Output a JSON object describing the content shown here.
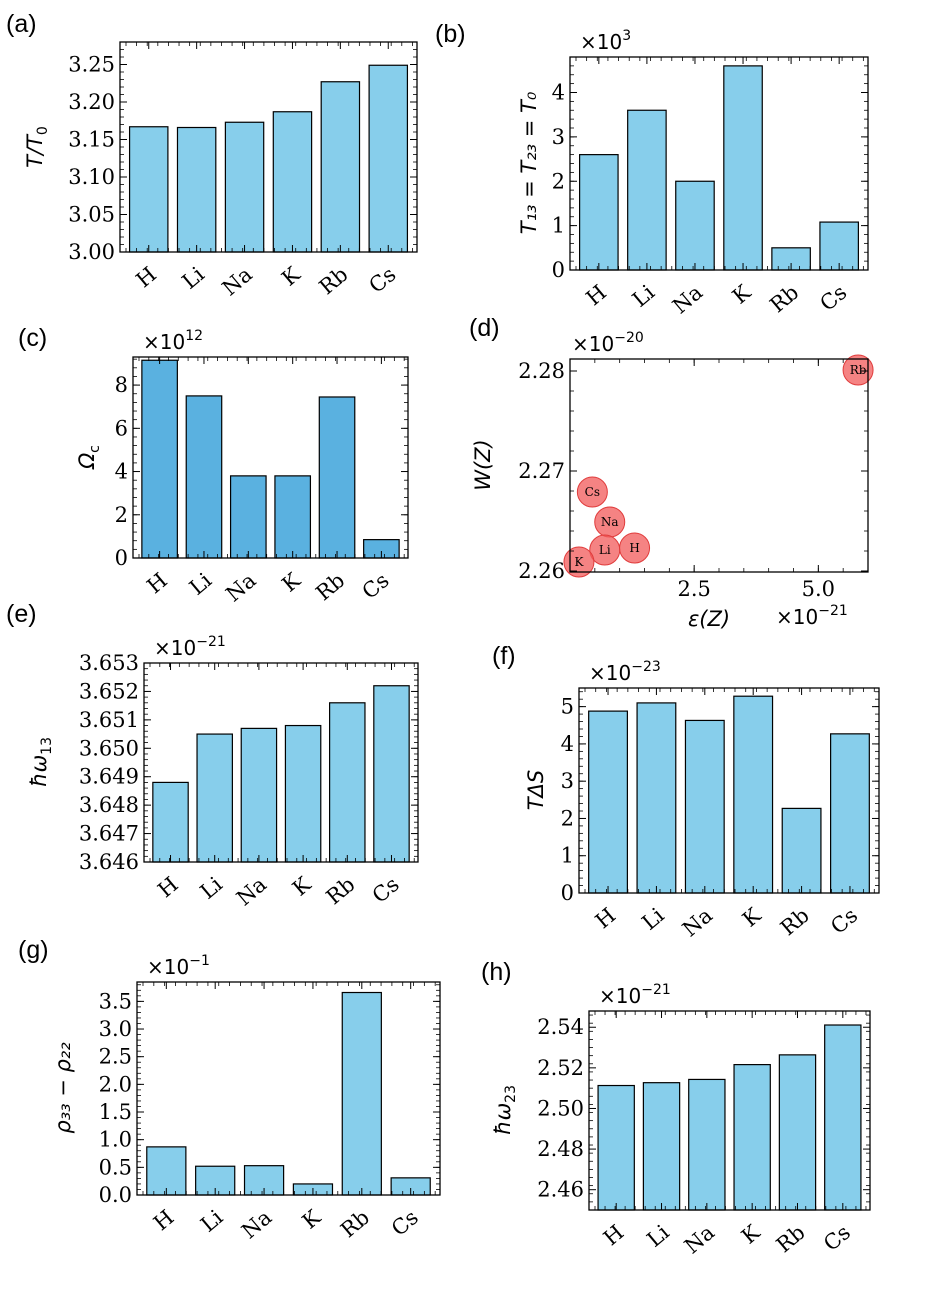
{
  "colors": {
    "bar_light": "#87ceeb",
    "bar_dark": "#5ab1e0",
    "point": "#f25a5a"
  },
  "chart_data": [
    {
      "id": "a",
      "panel_label": "(a)",
      "type": "bar",
      "categories": [
        "H",
        "Li",
        "Na",
        "K",
        "Rb",
        "Cs"
      ],
      "values": [
        3.167,
        3.166,
        3.173,
        3.187,
        3.227,
        3.249
      ],
      "ylim": [
        3.0,
        3.28
      ],
      "yticks": [
        "3.00",
        "3.05",
        "3.10",
        "3.15",
        "3.20",
        "3.25"
      ],
      "ylabel": "T/T",
      "ylabel_sub": "0",
      "multiplier_base": "",
      "multiplier_exp": "",
      "bar_color": "#87ceeb"
    },
    {
      "id": "b",
      "panel_label": "(b)",
      "type": "bar",
      "categories": [
        "H",
        "Li",
        "Na",
        "K",
        "Rb",
        "Cs"
      ],
      "values": [
        2.6,
        3.6,
        2.0,
        4.6,
        0.5,
        1.08
      ],
      "ylim": [
        0,
        4.8
      ],
      "yticks": [
        "0",
        "1",
        "2",
        "3",
        "4"
      ],
      "ylabel": "T₁₃ = T₂₃ = T₀",
      "ylabel_sub": "",
      "multiplier_base": "×10",
      "multiplier_exp": "3",
      "bar_color": "#87ceeb"
    },
    {
      "id": "c",
      "panel_label": "(c)",
      "type": "bar",
      "categories": [
        "H",
        "Li",
        "Na",
        "K",
        "Rb",
        "Cs"
      ],
      "values": [
        9.15,
        7.5,
        3.8,
        3.8,
        7.45,
        0.85
      ],
      "ylim": [
        0,
        9.3
      ],
      "yticks": [
        "0",
        "2",
        "4",
        "6",
        "8"
      ],
      "ylabel": "Ω",
      "ylabel_sub": "c",
      "multiplier_base": "×10",
      "multiplier_exp": "12",
      "bar_color": "#5ab1e0"
    },
    {
      "id": "d",
      "panel_label": "(d)",
      "type": "scatter",
      "points": [
        {
          "label": "Rb",
          "x": 5.8,
          "y": 2.2801
        },
        {
          "label": "Cs",
          "x": 0.45,
          "y": 2.2679
        },
        {
          "label": "Na",
          "x": 0.8,
          "y": 2.2649
        },
        {
          "label": "Li",
          "x": 0.7,
          "y": 2.2621
        },
        {
          "label": "H",
          "x": 1.3,
          "y": 2.2623
        },
        {
          "label": "K",
          "x": 0.18,
          "y": 2.2609
        }
      ],
      "xlim": [
        0.0,
        6.0
      ],
      "ylim": [
        2.2599,
        2.2812
      ],
      "xticks": [
        "2.5",
        "5.0"
      ],
      "xtick_values": [
        2.5,
        5.0
      ],
      "yticks": [
        "2.26",
        "2.27",
        "2.28"
      ],
      "ytick_values": [
        2.26,
        2.27,
        2.28
      ],
      "ylabel": "W(Z)",
      "xlabel": "ε(Z)",
      "multiplier_base": "×10",
      "multiplier_exp": "−20",
      "x_multiplier_base": "×10",
      "x_multiplier_exp": "−21"
    },
    {
      "id": "e",
      "panel_label": "(e)",
      "type": "bar",
      "categories": [
        "H",
        "Li",
        "Na",
        "K",
        "Rb",
        "Cs"
      ],
      "values": [
        3.6488,
        3.6505,
        3.6507,
        3.6508,
        3.6516,
        3.6522
      ],
      "ylim": [
        3.646,
        3.653
      ],
      "yticks": [
        "3.646",
        "3.647",
        "3.648",
        "3.649",
        "3.650",
        "3.651",
        "3.652",
        "3.653"
      ],
      "ylabel": "ħω",
      "ylabel_sub": "13",
      "multiplier_base": "×10",
      "multiplier_exp": "−21",
      "bar_color": "#87ceeb"
    },
    {
      "id": "f",
      "panel_label": "(f)",
      "type": "bar",
      "categories": [
        "H",
        "Li",
        "Na",
        "K",
        "Rb",
        "Cs"
      ],
      "values": [
        4.88,
        5.1,
        4.63,
        5.28,
        2.27,
        4.27
      ],
      "ylim": [
        0,
        5.5
      ],
      "yticks": [
        "0",
        "1",
        "2",
        "3",
        "4",
        "5"
      ],
      "ylabel": "TΔS",
      "ylabel_sub": "",
      "multiplier_base": "×10",
      "multiplier_exp": "−23",
      "bar_color": "#87ceeb"
    },
    {
      "id": "g",
      "panel_label": "(g)",
      "type": "bar",
      "categories": [
        "H",
        "Li",
        "Na",
        "K",
        "Rb",
        "Cs"
      ],
      "values": [
        0.87,
        0.52,
        0.53,
        0.2,
        3.66,
        0.31
      ],
      "ylim": [
        0,
        3.85
      ],
      "yticks": [
        "0.0",
        "0.5",
        "1.0",
        "1.5",
        "2.0",
        "2.5",
        "3.0",
        "3.5"
      ],
      "ylabel": "ρ₃₃ − ρ₂₂",
      "ylabel_sub": "",
      "multiplier_base": "×10",
      "multiplier_exp": "−1",
      "bar_color": "#87ceeb"
    },
    {
      "id": "h",
      "panel_label": "(h)",
      "type": "bar",
      "categories": [
        "H",
        "Li",
        "Na",
        "K",
        "Rb",
        "Cs"
      ],
      "values": [
        2.5113,
        2.5127,
        2.5143,
        2.5216,
        2.5264,
        2.5411
      ],
      "ylim": [
        2.45,
        2.548
      ],
      "yticks": [
        "2.46",
        "2.48",
        "2.50",
        "2.52",
        "2.54"
      ],
      "ylabel": "ħω",
      "ylabel_sub": "23",
      "multiplier_base": "×10",
      "multiplier_exp": "−21",
      "bar_color": "#87ceeb"
    }
  ]
}
